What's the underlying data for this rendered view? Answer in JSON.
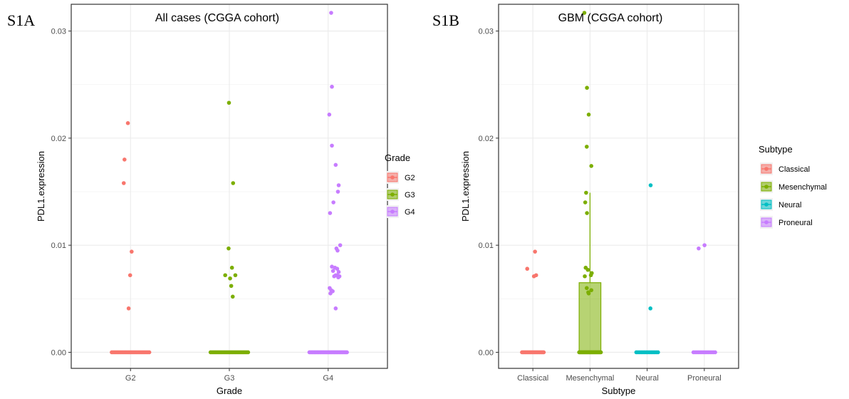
{
  "chart_data": [
    {
      "type": "scatter",
      "panel_label": "S1A",
      "title": "All cases (CGGA cohort)",
      "xlabel": "Grade",
      "ylabel": "PDL1.expression",
      "categories": [
        "G2",
        "G3",
        "G4"
      ],
      "ylim": [
        -0.0015,
        0.0325
      ],
      "yticks": [
        0.0,
        0.01,
        0.02,
        0.03
      ],
      "ytick_labels": [
        "0.00",
        "0.01",
        "0.02",
        "0.03"
      ],
      "grid": true,
      "legend": {
        "title": "Grade",
        "position": "right",
        "entries": [
          "G2",
          "G3",
          "G4"
        ]
      },
      "colors": [
        "#F8766D",
        "#7CAE00",
        "#C77CFF"
      ],
      "series": [
        {
          "name": "G2",
          "zero_count": 30,
          "points": [
            [
              -0.07,
              0.0214
            ],
            [
              -0.16,
              0.018
            ],
            [
              -0.18,
              0.0158
            ],
            [
              0.03,
              0.0094
            ],
            [
              -0.01,
              0.0072
            ],
            [
              -0.05,
              0.0041
            ]
          ],
          "box": {
            "q1": 0,
            "median": 0,
            "q3": 0,
            "whisker_low": 0,
            "whisker_high": 0
          }
        },
        {
          "name": "G3",
          "zero_count": 30,
          "points": [
            [
              -0.01,
              0.0233
            ],
            [
              0.1,
              0.0158
            ],
            [
              -0.02,
              0.0097
            ],
            [
              0.07,
              0.0079
            ],
            [
              -0.11,
              0.0072
            ],
            [
              0.16,
              0.0072
            ],
            [
              0.02,
              0.0069
            ],
            [
              0.05,
              0.0062
            ],
            [
              0.09,
              0.0052
            ]
          ],
          "box": {
            "q1": 0,
            "median": 0,
            "q3": 0,
            "whisker_low": 0,
            "whisker_high": 0
          }
        },
        {
          "name": "G4",
          "zero_count": 40,
          "points": [
            [
              0.08,
              0.0317
            ],
            [
              0.1,
              0.0248
            ],
            [
              0.03,
              0.0222
            ],
            [
              0.1,
              0.0193
            ],
            [
              0.2,
              0.0175
            ],
            [
              0.28,
              0.0156
            ],
            [
              0.26,
              0.015
            ],
            [
              0.14,
              0.014
            ],
            [
              0.05,
              0.013
            ],
            [
              0.32,
              0.01
            ],
            [
              0.22,
              0.0097
            ],
            [
              0.25,
              0.0095
            ],
            [
              0.1,
              0.008
            ],
            [
              0.18,
              0.0079
            ],
            [
              0.24,
              0.0078
            ],
            [
              0.13,
              0.0076
            ],
            [
              0.28,
              0.0075
            ],
            [
              0.2,
              0.0072
            ],
            [
              0.24,
              0.0072
            ],
            [
              0.3,
              0.0071
            ],
            [
              0.16,
              0.0071
            ],
            [
              0.27,
              0.007
            ],
            [
              0.04,
              0.006
            ],
            [
              0.08,
              0.0058
            ],
            [
              0.12,
              0.0057
            ],
            [
              0.06,
              0.0055
            ],
            [
              0.2,
              0.0041
            ]
          ],
          "box": {
            "q1": 0,
            "median": 0,
            "q3": 0,
            "whisker_low": 0,
            "whisker_high": 0
          }
        }
      ]
    },
    {
      "type": "scatter",
      "panel_label": "S1B",
      "title": "GBM (CGGA cohort)",
      "xlabel": "Subtype",
      "ylabel": "PDL1.expression",
      "categories": [
        "Classical",
        "Mesenchymal",
        "Neural",
        "Proneural"
      ],
      "ylim": [
        -0.0015,
        0.0325
      ],
      "yticks": [
        0.0,
        0.01,
        0.02,
        0.03
      ],
      "ytick_labels": [
        "0.00",
        "0.01",
        "0.02",
        "0.03"
      ],
      "grid": true,
      "legend": {
        "title": "Subtype",
        "position": "right",
        "entries": [
          "Classical",
          "Mesenchymal",
          "Neural",
          "Proneural"
        ]
      },
      "colors": [
        "#F8766D",
        "#7CAE00",
        "#00BFC4",
        "#C77CFF"
      ],
      "series": [
        {
          "name": "Classical",
          "zero_count": 22,
          "points": [
            [
              0.1,
              0.0094
            ],
            [
              -0.26,
              0.0078
            ],
            [
              0.05,
              0.0071
            ],
            [
              0.15,
              0.0072
            ]
          ],
          "box": {
            "q1": 0,
            "median": 0,
            "q3": 0,
            "whisker_low": 0,
            "whisker_high": 0
          }
        },
        {
          "name": "Mesenchymal",
          "zero_count": 30,
          "points": [
            [
              -0.26,
              0.0317
            ],
            [
              -0.14,
              0.0247
            ],
            [
              -0.06,
              0.0222
            ],
            [
              -0.15,
              0.0192
            ],
            [
              0.06,
              0.0174
            ],
            [
              -0.18,
              0.0149
            ],
            [
              -0.22,
              0.014
            ],
            [
              -0.14,
              0.013
            ],
            [
              -0.2,
              0.0079
            ],
            [
              -0.1,
              0.0077
            ],
            [
              0.08,
              0.0074
            ],
            [
              0.04,
              0.0072
            ],
            [
              -0.24,
              0.0071
            ],
            [
              -0.15,
              0.006
            ],
            [
              0.06,
              0.0058
            ],
            [
              -0.08,
              0.0056
            ],
            [
              -0.06,
              0.0055
            ]
          ],
          "box": {
            "q1": 0,
            "median": 0,
            "q3": 0.0065,
            "whisker_low": 0,
            "whisker_high": 0.0149
          }
        },
        {
          "name": "Neural",
          "zero_count": 14,
          "points": [
            [
              0.16,
              0.0156
            ],
            [
              0.15,
              0.0041
            ]
          ],
          "box": {
            "q1": 0,
            "median": 0,
            "q3": 0,
            "whisker_low": 0,
            "whisker_high": 0
          }
        },
        {
          "name": "Proneural",
          "zero_count": 14,
          "points": [
            [
              -0.26,
              0.0097
            ],
            [
              0.01,
              0.01
            ]
          ],
          "box": {
            "q1": 0,
            "median": 0,
            "q3": 0,
            "whisker_low": 0,
            "whisker_high": 0
          }
        }
      ]
    }
  ]
}
